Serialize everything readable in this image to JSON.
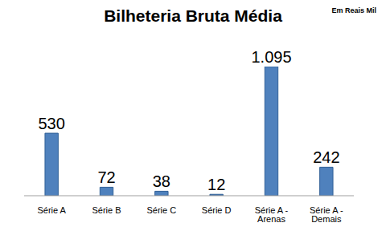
{
  "chart_data": {
    "type": "bar",
    "title": "Bilheteria Bruta Média",
    "subtitle": "Em Reais Mil",
    "categories": [
      "Série A",
      "Série B",
      "Série C",
      "Série D",
      "Série A - Arenas",
      "Série A - Demais"
    ],
    "values": [
      530,
      72,
      38,
      12,
      1095,
      242
    ],
    "value_labels": [
      "530",
      "72",
      "38",
      "12",
      "1.095",
      "242"
    ],
    "color": "#4f81bd",
    "data_labels": true,
    "tick_labels": "x",
    "grid": false
  }
}
